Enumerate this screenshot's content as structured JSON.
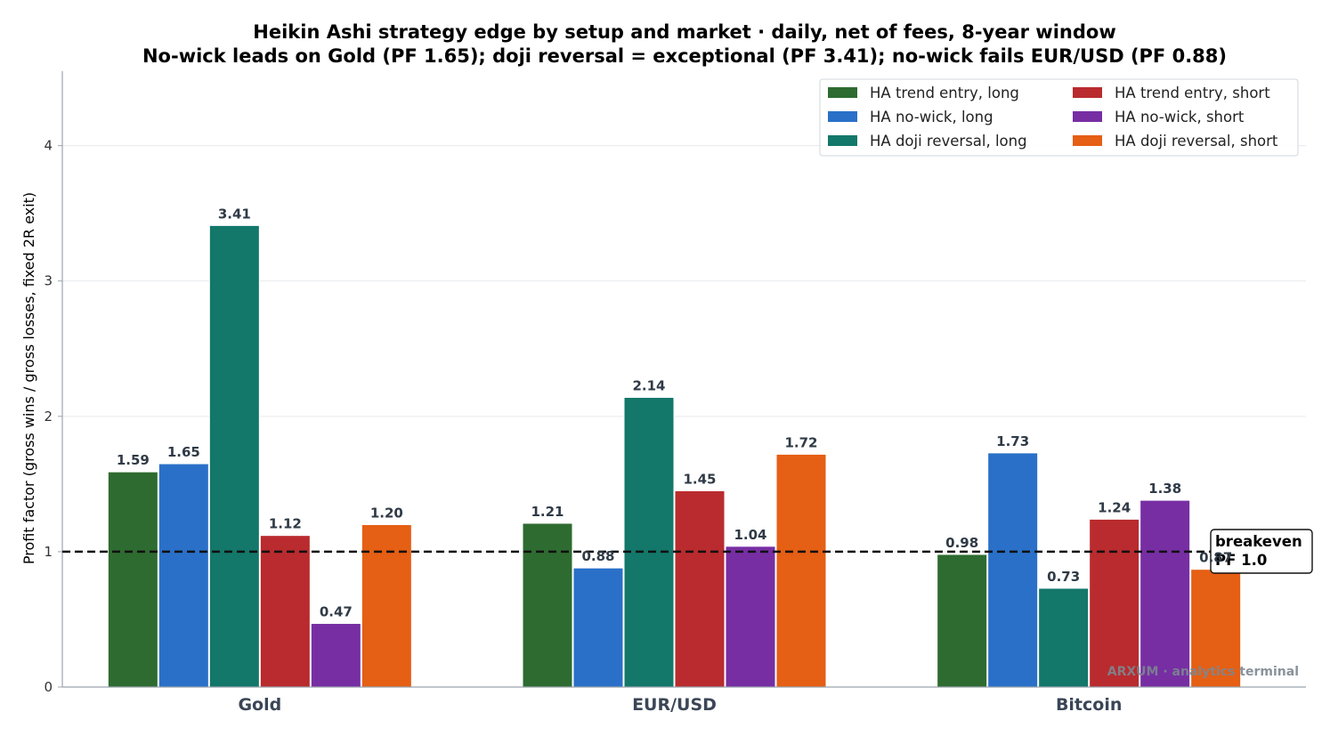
{
  "chart_data": {
    "type": "bar",
    "title": "Heikin Ashi strategy edge by setup and market · daily, net of fees, 8-year window",
    "subtitle": "No-wick leads on Gold (PF 1.65); doji reversal = exceptional (PF 3.41); no-wick fails EUR/USD (PF 0.88)",
    "xlabel": "",
    "ylabel": "Profit factor (gross wins / gross losses, fixed 2R exit)",
    "ylim": [
      0,
      4.55
    ],
    "yticks": [
      0,
      1,
      2,
      3,
      4
    ],
    "grid": true,
    "legend_position": "top-right",
    "categories": [
      "Gold",
      "EUR/USD",
      "Bitcoin"
    ],
    "series": [
      {
        "name": "HA trend entry, long",
        "color": "#2e6b30",
        "values": [
          1.59,
          1.21,
          0.98
        ]
      },
      {
        "name": "HA no-wick, long",
        "color": "#2a70c8",
        "values": [
          1.65,
          0.88,
          1.73
        ]
      },
      {
        "name": "HA doji reversal, long",
        "color": "#13776a",
        "values": [
          3.41,
          2.14,
          0.73
        ]
      },
      {
        "name": "HA trend entry, short",
        "color": "#b92b2e",
        "values": [
          1.12,
          1.45,
          1.24
        ]
      },
      {
        "name": "HA no-wick, short",
        "color": "#772ea3",
        "values": [
          0.47,
          1.04,
          1.38
        ]
      },
      {
        "name": "HA doji reversal, short",
        "color": "#e55f14",
        "values": [
          1.2,
          1.72,
          0.87
        ]
      }
    ],
    "reference_line": {
      "value": 1.0,
      "label_line1": "breakeven",
      "label_line2": "PF 1.0"
    }
  },
  "watermark": "ARXUM · analytics terminal"
}
